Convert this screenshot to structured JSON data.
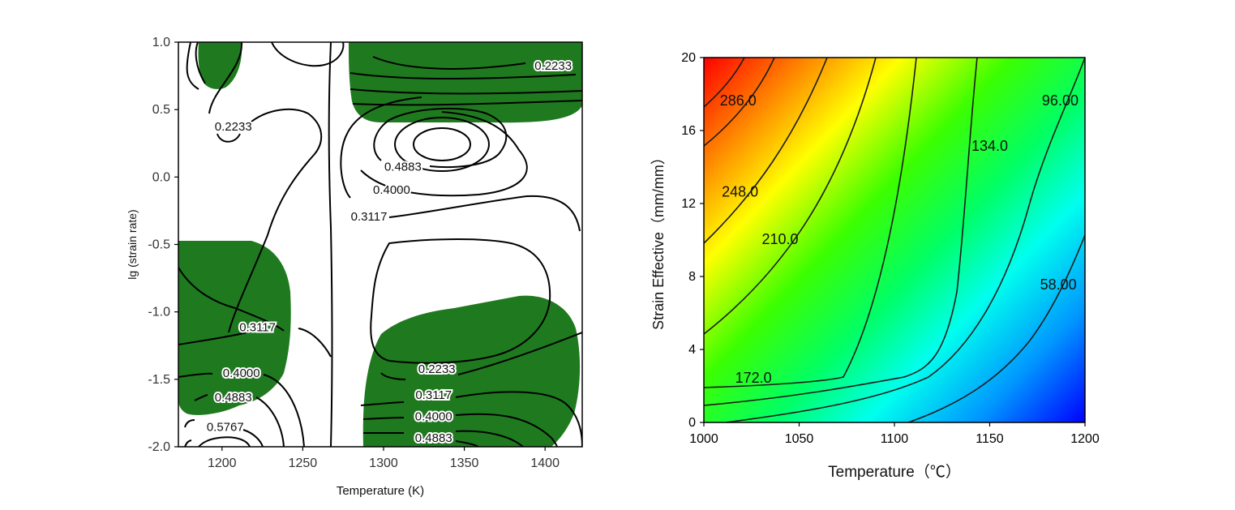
{
  "chart_data": [
    {
      "type": "contour",
      "title": "",
      "xlabel": "Temperature (K)",
      "ylabel": "lg (strain rate)",
      "xlim": [
        1173,
        1423
      ],
      "ylim": [
        -2.0,
        1.0
      ],
      "x_ticks": [
        1200,
        1250,
        1300,
        1350,
        1400
      ],
      "y_ticks": [
        "1.0",
        "0.5",
        "0.0",
        "-0.5",
        "-1.0",
        "-1.5",
        "-2.0"
      ],
      "contour_labels": [
        {
          "text": "0.2233",
          "x": 1405,
          "y": 0.82
        },
        {
          "text": "0.2233",
          "x": 1207,
          "y": 0.37
        },
        {
          "text": "0.4883",
          "x": 1312,
          "y": 0.07
        },
        {
          "text": "0.4000",
          "x": 1305,
          "y": -0.1
        },
        {
          "text": "0.3117",
          "x": 1291,
          "y": -0.3
        },
        {
          "text": "0.3117",
          "x": 1222,
          "y": -1.12
        },
        {
          "text": "0.4000",
          "x": 1212,
          "y": -1.46
        },
        {
          "text": "0.4883",
          "x": 1207,
          "y": -1.64
        },
        {
          "text": "0.5767",
          "x": 1202,
          "y": -1.86
        },
        {
          "text": "0.2233",
          "x": 1333,
          "y": -1.43
        },
        {
          "text": "0.3117",
          "x": 1331,
          "y": -1.62
        },
        {
          "text": "0.4000",
          "x": 1331,
          "y": -1.78
        },
        {
          "text": "0.4883",
          "x": 1331,
          "y": -1.94
        }
      ],
      "instability_color": "#1f7a1f"
    },
    {
      "type": "heatmap",
      "title": "",
      "xlabel": "Temperature（℃）",
      "ylabel": "Strain Effective（mm/mm）",
      "xlim": [
        1000,
        1200
      ],
      "ylim": [
        0,
        20
      ],
      "x_ticks": [
        "1000",
        "1050",
        "1100",
        "1150",
        "1200"
      ],
      "y_ticks": [
        "20",
        "16",
        "12",
        "8",
        "4",
        "0"
      ],
      "contour_labels": [
        {
          "text": "286.0",
          "x": 1018,
          "y": 17.6
        },
        {
          "text": "248.0",
          "x": 1019,
          "y": 12.6
        },
        {
          "text": "210.0",
          "x": 1040,
          "y": 10.0
        },
        {
          "text": "172.0",
          "x": 1026,
          "y": 2.4
        },
        {
          "text": "134.0",
          "x": 1150,
          "y": 15.1
        },
        {
          "text": "96.00",
          "x": 1187,
          "y": 17.6
        },
        {
          "text": "58.00",
          "x": 1186,
          "y": 7.5
        }
      ],
      "colorscale": [
        "#ff0000",
        "#ffff00",
        "#00ff00",
        "#00ffff",
        "#0000ff"
      ]
    }
  ]
}
